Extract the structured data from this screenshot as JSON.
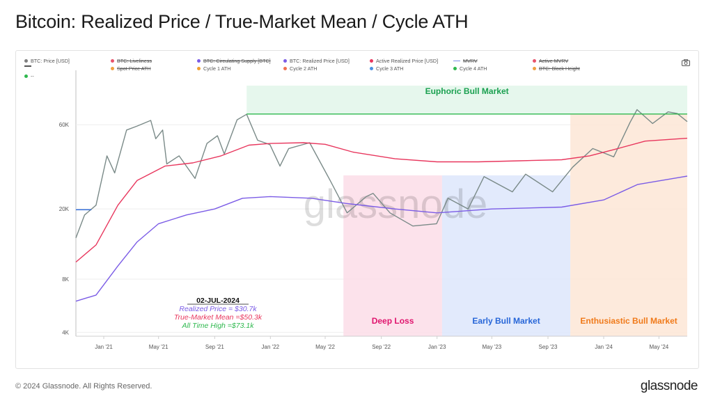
{
  "title": "Bitcoin: Realized Price / True-Market Mean / Cycle ATH",
  "footer": "© 2024 Glassnode. All Rights Reserved.",
  "brand": "glassnode",
  "watermark": "glassnode",
  "legend": [
    {
      "label": "BTC: Price [USD]",
      "color": "#7f7f7f",
      "active": true,
      "marker": "dot"
    },
    {
      "label": "BTC: Liveliness",
      "color": "#e8536b",
      "active": false,
      "marker": "dot"
    },
    {
      "label": "BTC: Circulating Supply [BTC]",
      "color": "#7b5ce6",
      "active": false,
      "marker": "dot"
    },
    {
      "label": "BTC: Realized Price [USD]",
      "color": "#7b5ce6",
      "active": true,
      "marker": "dot"
    },
    {
      "label": "Active Realized Price [USD]",
      "color": "#e8365d",
      "active": true,
      "marker": "dot"
    },
    {
      "label": "MVRV",
      "color": "#7b8ce6",
      "active": false,
      "marker": "dash"
    },
    {
      "label": "Active MVRV",
      "color": "#e8536b",
      "active": false,
      "marker": "dot"
    },
    {
      "label": "",
      "color": "#555555",
      "active": true,
      "marker": "dash"
    },
    {
      "label": "Spot Price ATH",
      "color": "#f0a040",
      "active": false,
      "marker": "dot"
    },
    {
      "label": "Cycle 1 ATH",
      "color": "#f0a030",
      "active": true,
      "marker": "dot"
    },
    {
      "label": "Cycle 2 ATH",
      "color": "#f07050",
      "active": true,
      "marker": "dot"
    },
    {
      "label": "Cycle 3 ATH",
      "color": "#4a90e2",
      "active": true,
      "marker": "dot"
    },
    {
      "label": "Cycle 4 ATH",
      "color": "#2eb84e",
      "active": true,
      "marker": "dot"
    },
    {
      "label": "BTC: Block Height",
      "color": "#f0a040",
      "active": false,
      "marker": "dot"
    },
    {
      "label": "--",
      "color": "#2eb84e",
      "active": true,
      "marker": "dot"
    }
  ],
  "annotation": {
    "date": "02-JUL-2024",
    "realized": "Realized Price = $30.7k",
    "true_market": "True-Market Mean =$50.3k",
    "ath": "All Time High =$73.1k"
  },
  "colors": {
    "price": "#7a8a88",
    "true_market": "#e8365d",
    "realized": "#7b5ce6",
    "ath": "#2eb84e",
    "deep_loss": "#fbdde7",
    "early_bull": "#dde6fb",
    "enthusiastic": "#fde6d6",
    "euphoric": "#e2f6ea",
    "deep_loss_text": "#e0156e",
    "early_bull_text": "#2766d8",
    "enthusiastic_text": "#f07a1a",
    "euphoric_text": "#1aa050"
  },
  "chart_data": {
    "type": "line",
    "yscale": "log",
    "ylim": [
      3800,
      100000
    ],
    "xlim": [
      "2020-11-01",
      "2024-07-02"
    ],
    "y_ticks": [
      {
        "v": 4000,
        "label": "4K"
      },
      {
        "v": 8000,
        "label": "8K"
      },
      {
        "v": 20000,
        "label": "20K"
      },
      {
        "v": 60000,
        "label": "60K"
      }
    ],
    "x_ticks": [
      {
        "date": "2021-01-01",
        "label": "Jan '21"
      },
      {
        "date": "2021-05-01",
        "label": "May '21"
      },
      {
        "date": "2021-09-01",
        "label": "Sep '21"
      },
      {
        "date": "2022-01-01",
        "label": "Jan '22"
      },
      {
        "date": "2022-05-01",
        "label": "May '22"
      },
      {
        "date": "2022-09-01",
        "label": "Sep '22"
      },
      {
        "date": "2023-01-01",
        "label": "Jan '23"
      },
      {
        "date": "2023-05-01",
        "label": "May '23"
      },
      {
        "date": "2023-09-01",
        "label": "Sep '23"
      },
      {
        "date": "2024-01-01",
        "label": "Jan '24"
      },
      {
        "date": "2024-05-01",
        "label": "May '24"
      }
    ],
    "zones": [
      {
        "label": "Deep Loss",
        "start": "2022-06-10",
        "end": "2023-01-12",
        "fill": "deep_loss",
        "text": "deep_loss_text",
        "y_top": 31000
      },
      {
        "label": "Early Bull Market",
        "start": "2023-01-12",
        "end": "2023-10-20",
        "fill": "early_bull",
        "text": "early_bull_text",
        "y_top": 31000
      },
      {
        "label": "Enthusiastic Bull Market",
        "start": "2023-10-20",
        "end": "2024-07-02",
        "fill": "enthusiastic",
        "text": "enthusiastic_text",
        "y_top": 69000
      },
      {
        "label": "Euphoric Bull Market",
        "start": "2021-11-10",
        "end": "2024-07-02",
        "fill": "euphoric",
        "text": "euphoric_text",
        "y_top": 100000,
        "y_bottom": 69000,
        "label_top": true
      }
    ],
    "series": [
      {
        "key": "price",
        "color": "price",
        "points": [
          [
            "2020-11-01",
            13700
          ],
          [
            "2020-11-20",
            18500
          ],
          [
            "2020-12-15",
            21000
          ],
          [
            "2021-01-08",
            40000
          ],
          [
            "2021-01-25",
            32000
          ],
          [
            "2021-02-20",
            56000
          ],
          [
            "2021-03-15",
            59000
          ],
          [
            "2021-04-14",
            63500
          ],
          [
            "2021-04-25",
            50000
          ],
          [
            "2021-05-10",
            56000
          ],
          [
            "2021-05-19",
            36000
          ],
          [
            "2021-06-15",
            40000
          ],
          [
            "2021-07-20",
            29800
          ],
          [
            "2021-08-15",
            47000
          ],
          [
            "2021-09-07",
            52000
          ],
          [
            "2021-09-22",
            41000
          ],
          [
            "2021-10-20",
            64000
          ],
          [
            "2021-11-10",
            68800
          ],
          [
            "2021-12-04",
            49000
          ],
          [
            "2021-12-31",
            46300
          ],
          [
            "2022-01-22",
            35000
          ],
          [
            "2022-02-10",
            44000
          ],
          [
            "2022-03-28",
            47500
          ],
          [
            "2022-05-12",
            29000
          ],
          [
            "2022-06-18",
            19000
          ],
          [
            "2022-07-30",
            23500
          ],
          [
            "2022-08-14",
            24500
          ],
          [
            "2022-09-20",
            19000
          ],
          [
            "2022-11-09",
            16000
          ],
          [
            "2022-12-31",
            16500
          ],
          [
            "2023-01-25",
            23000
          ],
          [
            "2023-03-10",
            20000
          ],
          [
            "2023-04-14",
            30500
          ],
          [
            "2023-06-15",
            25000
          ],
          [
            "2023-07-14",
            31500
          ],
          [
            "2023-09-11",
            25000
          ],
          [
            "2023-10-25",
            34500
          ],
          [
            "2023-12-08",
            44000
          ],
          [
            "2024-01-23",
            39500
          ],
          [
            "2024-02-28",
            62000
          ],
          [
            "2024-03-14",
            73100
          ],
          [
            "2024-04-17",
            61000
          ],
          [
            "2024-05-21",
            71000
          ],
          [
            "2024-06-10",
            69500
          ],
          [
            "2024-07-02",
            62500
          ]
        ]
      },
      {
        "key": "true_market",
        "color": "true_market",
        "points": [
          [
            "2020-11-01",
            10000
          ],
          [
            "2020-12-15",
            12500
          ],
          [
            "2021-02-01",
            21000
          ],
          [
            "2021-03-15",
            29000
          ],
          [
            "2021-05-15",
            35000
          ],
          [
            "2021-07-15",
            36500
          ],
          [
            "2021-09-15",
            40000
          ],
          [
            "2021-11-15",
            46000
          ],
          [
            "2022-01-01",
            47000
          ],
          [
            "2022-03-15",
            47500
          ],
          [
            "2022-05-01",
            46500
          ],
          [
            "2022-07-01",
            42000
          ],
          [
            "2022-10-01",
            38500
          ],
          [
            "2023-01-01",
            37000
          ],
          [
            "2023-04-01",
            37000
          ],
          [
            "2023-07-01",
            37500
          ],
          [
            "2023-10-01",
            38000
          ],
          [
            "2023-12-01",
            40000
          ],
          [
            "2024-02-01",
            44000
          ],
          [
            "2024-04-01",
            48500
          ],
          [
            "2024-07-02",
            50300
          ]
        ]
      },
      {
        "key": "realized",
        "color": "realized",
        "points": [
          [
            "2020-11-01",
            6000
          ],
          [
            "2020-12-15",
            6500
          ],
          [
            "2021-02-01",
            9500
          ],
          [
            "2021-03-15",
            13000
          ],
          [
            "2021-05-01",
            16500
          ],
          [
            "2021-07-01",
            18500
          ],
          [
            "2021-09-01",
            20000
          ],
          [
            "2021-11-01",
            23000
          ],
          [
            "2022-01-01",
            23500
          ],
          [
            "2022-04-01",
            23000
          ],
          [
            "2022-06-15",
            21500
          ],
          [
            "2022-10-01",
            20000
          ],
          [
            "2023-01-01",
            19000
          ],
          [
            "2023-05-01",
            20000
          ],
          [
            "2023-10-01",
            20500
          ],
          [
            "2024-01-01",
            22500
          ],
          [
            "2024-03-15",
            27500
          ],
          [
            "2024-07-02",
            30700
          ]
        ]
      },
      {
        "key": "ath",
        "color": "ath",
        "points": [
          [
            "2021-11-10",
            69000
          ],
          [
            "2024-07-02",
            69000
          ]
        ]
      },
      {
        "key": "cycle3_ath",
        "color": "early_bull_text",
        "points": [
          [
            "2020-11-01",
            19800
          ],
          [
            "2020-12-05",
            19800
          ]
        ]
      }
    ]
  }
}
